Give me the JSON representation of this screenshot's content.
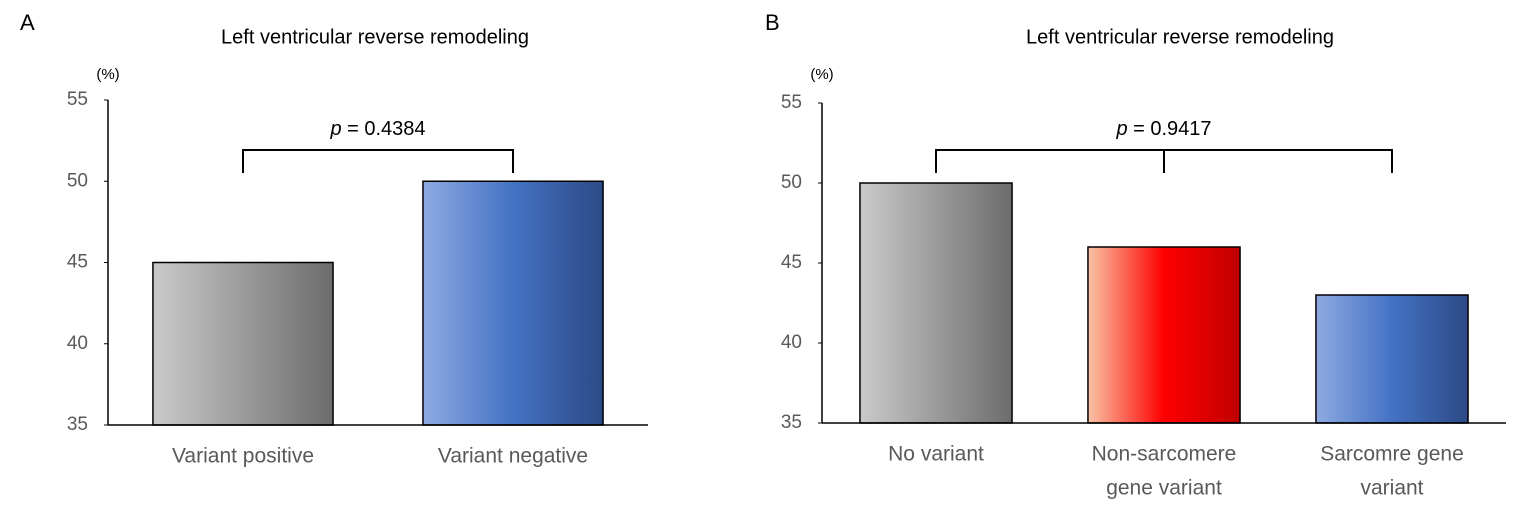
{
  "chart_data": [
    {
      "type": "bar",
      "panel": "A",
      "title": "Left ventricular reverse remodeling",
      "y_label": "(%)",
      "p_label": "p",
      "p_value": "= 0.4384",
      "categories": [
        [
          "Variant positive"
        ],
        [
          "Variant negative"
        ]
      ],
      "values": [
        45,
        50
      ],
      "colors": [
        [
          "#cacaca",
          "#6c6c6c"
        ],
        [
          "#8eaae2",
          "#4472c4",
          "#2c4a86"
        ]
      ],
      "ylim": [
        35,
        55
      ],
      "yticks": [
        35,
        40,
        45,
        50,
        55
      ]
    },
    {
      "type": "bar",
      "panel": "B",
      "title": "Left ventricular reverse remodeling",
      "y_label": "(%)",
      "p_label": "p",
      "p_value": "= 0.9417",
      "categories": [
        [
          "No variant"
        ],
        [
          "Non-sarcomere",
          "gene variant"
        ],
        [
          "Sarcomre gene",
          "variant"
        ]
      ],
      "values": [
        50,
        46,
        43
      ],
      "colors": [
        [
          "#cacaca",
          "#6c6c6c"
        ],
        [
          "#f9c4a6",
          "#ff0000",
          "#c00000"
        ],
        [
          "#8eaae2",
          "#4472c4",
          "#2c4a86"
        ]
      ],
      "ylim": [
        35,
        55
      ],
      "yticks": [
        35,
        40,
        45,
        50,
        55
      ]
    }
  ]
}
